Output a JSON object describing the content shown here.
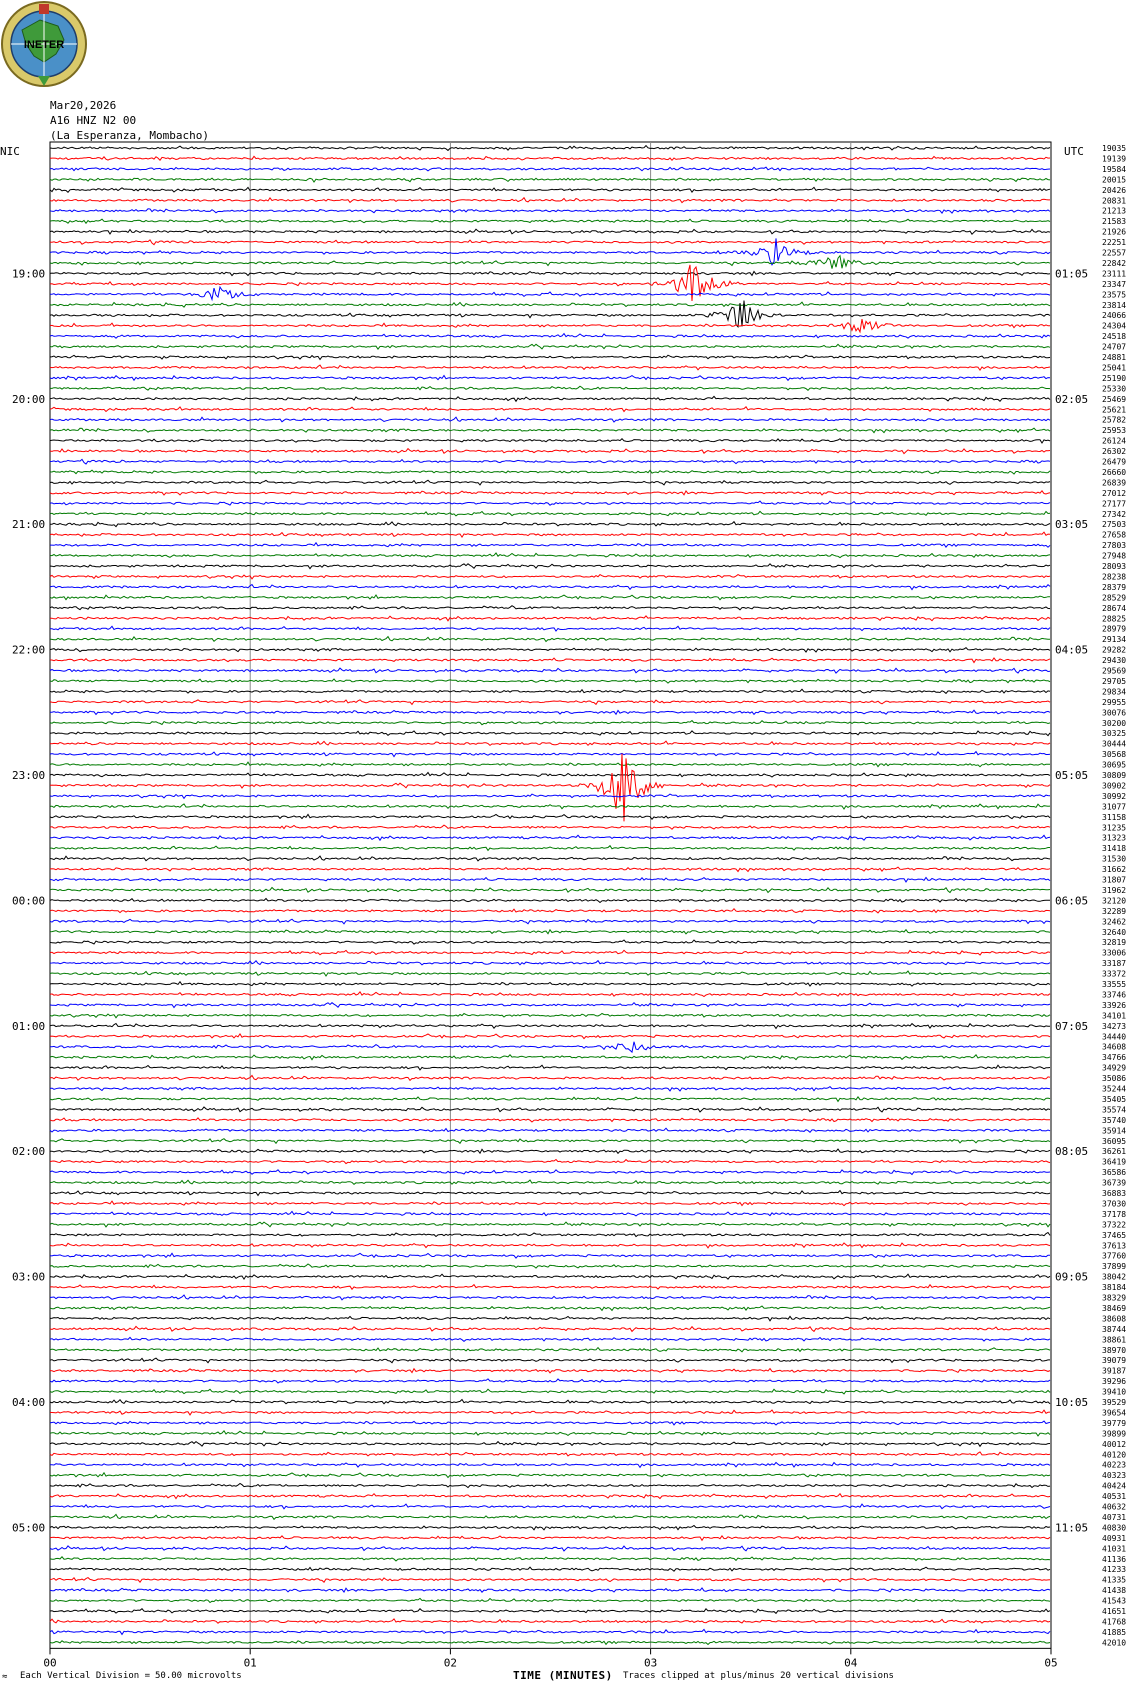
{
  "header": {
    "logo_text": "INETER",
    "date": "Mar20,2026",
    "station": "A16 HNZ N2 00",
    "location": "(La Esperanza, Mombacho)"
  },
  "labels": {
    "left_tz": "NIC",
    "right_tz": "UTC"
  },
  "footer": {
    "scale_prefix": "Each Vertical Division =",
    "scale_value": "50.00 microvolts",
    "xlabel": "TIME (MINUTES)",
    "clip_note": "Traces clipped at plus/minus 20 vertical divisions",
    "corner_mark": "≈"
  },
  "chart_data": {
    "type": "line",
    "title": "A16 HNZ N2 00 (La Esperanza, Mombacho)",
    "xlabel": "TIME (MINUTES)",
    "ylabel": "",
    "xlim": [
      0,
      5
    ],
    "x_ticks": [
      "00",
      "01",
      "02",
      "03",
      "04",
      "05"
    ],
    "trace_minutes": 5,
    "trace_colors": [
      "#000000",
      "#ff0000",
      "#0000ff",
      "#007a00"
    ],
    "left_hour_labels": [
      "19:00",
      "20:00",
      "21:00",
      "22:00",
      "23:00",
      "00:00",
      "01:00",
      "02:00",
      "03:00",
      "04:00",
      "05:00"
    ],
    "right_hour_labels": [
      "01:05",
      "02:05",
      "03:05",
      "04:05",
      "05:05",
      "06:05",
      "07:05",
      "08:05",
      "09:05",
      "10:05",
      "11:05"
    ],
    "first_hour_label_row": 12,
    "rows_per_hour": 12,
    "counts": [
      "19035",
      "19139",
      "19584",
      "20015",
      "20426",
      "20831",
      "21213",
      "21583",
      "21926",
      "22251",
      "22557",
      "22842",
      "23111",
      "23347",
      "23575",
      "23814",
      "24066",
      "24304",
      "24518",
      "24707",
      "24881",
      "25041",
      "25190",
      "25330",
      "25469",
      "25621",
      "25782",
      "25953",
      "26124",
      "26302",
      "26479",
      "26660",
      "26839",
      "27012",
      "27177",
      "27342",
      "27503",
      "27658",
      "27803",
      "27948",
      "28093",
      "28238",
      "28379",
      "28529",
      "28674",
      "28825",
      "28979",
      "29134",
      "29282",
      "29430",
      "29569",
      "29705",
      "29834",
      "29955",
      "30076",
      "30200",
      "30325",
      "30444",
      "30568",
      "30695",
      "30809",
      "30902",
      "30992",
      "31077",
      "31158",
      "31235",
      "31323",
      "31418",
      "31530",
      "31662",
      "31807",
      "31962",
      "32120",
      "32289",
      "32462",
      "32640",
      "32819",
      "33006",
      "33187",
      "33372",
      "33555",
      "33746",
      "33926",
      "34101",
      "34273",
      "34440",
      "34608",
      "34766",
      "34929",
      "35086",
      "35244",
      "35405",
      "35574",
      "35740",
      "35914",
      "36095",
      "36261",
      "36419",
      "36586",
      "36739",
      "36883",
      "37030",
      "37178",
      "37322",
      "37465",
      "37613",
      "37760",
      "37899",
      "38042",
      "38184",
      "38329",
      "38469",
      "38608",
      "38744",
      "38861",
      "38970",
      "39079",
      "39187",
      "39296",
      "39410",
      "39529",
      "39654",
      "39779",
      "39899",
      "40012",
      "40120",
      "40223",
      "40323",
      "40424",
      "40531",
      "40632",
      "40731",
      "40830",
      "40931",
      "41031",
      "41136",
      "41233",
      "41335",
      "41438",
      "41543",
      "41651",
      "41768",
      "41885",
      "42010"
    ],
    "events": [
      {
        "row": 13,
        "minute": 3.23,
        "amplitude": 3.0
      },
      {
        "row": 16,
        "minute": 3.45,
        "amplitude": 2.0
      },
      {
        "row": 10,
        "minute": 3.62,
        "amplitude": 1.5
      },
      {
        "row": 11,
        "minute": 3.92,
        "amplitude": 1.0
      },
      {
        "row": 17,
        "minute": 4.05,
        "amplitude": 1.0
      },
      {
        "row": 14,
        "minute": 0.85,
        "amplitude": 0.8
      },
      {
        "row": 61,
        "minute": 2.87,
        "amplitude": 4.5
      },
      {
        "row": 86,
        "minute": 2.9,
        "amplitude": 0.6
      }
    ]
  }
}
